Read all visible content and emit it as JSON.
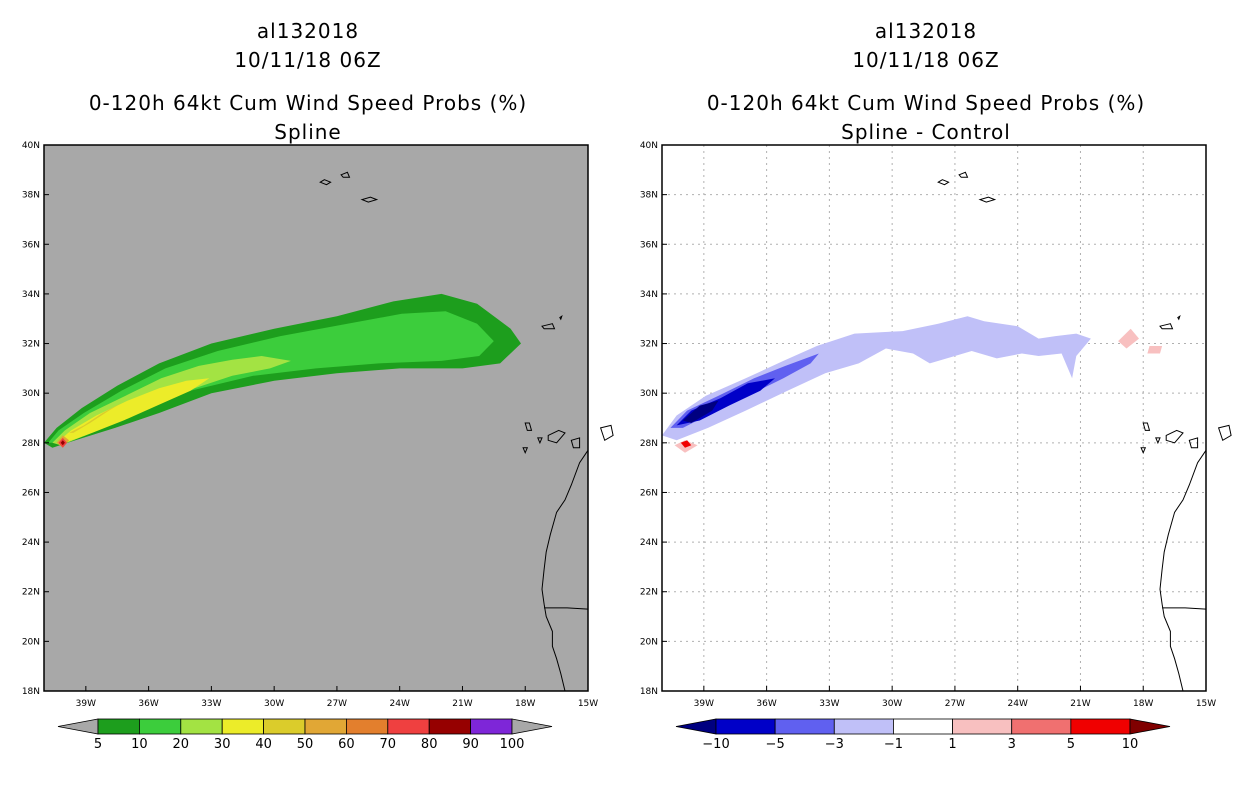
{
  "chart_data": [
    {
      "type": "heatmap",
      "storm_id": "al132018",
      "datetime": "10/11/18 06Z",
      "title": "0-120h 64kt Cum Wind Speed Probs (%)",
      "subtitle": "Spline",
      "xlim": [
        -41,
        -15
      ],
      "ylim": [
        18,
        40
      ],
      "x_ticks": [
        -39,
        -36,
        -33,
        -30,
        -27,
        -24,
        -21,
        -18,
        -15
      ],
      "y_ticks": [
        18,
        20,
        22,
        24,
        26,
        28,
        30,
        32,
        34,
        36,
        38,
        40
      ],
      "x_tick_labels": [
        "39W",
        "36W",
        "33W",
        "30W",
        "27W",
        "24W",
        "21W",
        "18W",
        "15W"
      ],
      "y_tick_labels": [
        "18N",
        "20N",
        "22N",
        "24N",
        "26N",
        "28N",
        "30N",
        "32N",
        "34N",
        "36N",
        "38N",
        "40N"
      ],
      "grid": false,
      "background": "#a8a8a8",
      "levels": [
        5,
        10,
        20,
        30,
        40,
        50,
        60,
        70,
        80,
        90,
        100
      ],
      "level_labels": [
        "5",
        "10",
        "20",
        "30",
        "40",
        "50",
        "60",
        "70",
        "80",
        "90",
        "100"
      ],
      "colors": [
        "#1d9e1d",
        "#3ccd3c",
        "#a3e343",
        "#ecec29",
        "#dbcc2b",
        "#e1a735",
        "#e37f2d",
        "#ef4040",
        "#960000",
        "#7e26d8"
      ],
      "end_color_low": "#a8a8a8",
      "end_color_high": "#a8a8a8",
      "contours": [
        {
          "level": 5,
          "points": [
            [
              -41,
              28
            ],
            [
              -40.4,
              28.6
            ],
            [
              -39.2,
              29.4
            ],
            [
              -37.5,
              30.3
            ],
            [
              -35.5,
              31.2
            ],
            [
              -33,
              32
            ],
            [
              -30,
              32.6
            ],
            [
              -27,
              33.1
            ],
            [
              -24.3,
              33.7
            ],
            [
              -22,
              34
            ],
            [
              -20.3,
              33.6
            ],
            [
              -18.7,
              32.6
            ],
            [
              -18.2,
              32
            ],
            [
              -19.2,
              31.2
            ],
            [
              -21,
              31
            ],
            [
              -24,
              31
            ],
            [
              -27,
              30.8
            ],
            [
              -30,
              30.5
            ],
            [
              -33,
              30
            ],
            [
              -35.5,
              29.2
            ],
            [
              -37.6,
              28.6
            ],
            [
              -39.5,
              28.1
            ],
            [
              -40.6,
              27.8
            ]
          ]
        },
        {
          "level": 10,
          "points": [
            [
              -40.8,
              28
            ],
            [
              -40.3,
              28.5
            ],
            [
              -39.1,
              29.2
            ],
            [
              -37.3,
              30.1
            ],
            [
              -35.2,
              31
            ],
            [
              -32.7,
              31.7
            ],
            [
              -29.7,
              32.3
            ],
            [
              -26.5,
              32.8
            ],
            [
              -23.9,
              33.2
            ],
            [
              -21.8,
              33.3
            ],
            [
              -20.3,
              32.8
            ],
            [
              -19.5,
              32.1
            ],
            [
              -20.2,
              31.5
            ],
            [
              -22,
              31.3
            ],
            [
              -25,
              31.2
            ],
            [
              -28,
              31
            ],
            [
              -31,
              30.7
            ],
            [
              -34,
              30.1
            ],
            [
              -36.3,
              29.3
            ],
            [
              -38.4,
              28.5
            ],
            [
              -40,
              28
            ]
          ]
        },
        {
          "level": 20,
          "points": [
            [
              -40.6,
              28
            ],
            [
              -40,
              28.5
            ],
            [
              -38.8,
              29.2
            ],
            [
              -37.1,
              29.9
            ],
            [
              -35.4,
              30.6
            ],
            [
              -33.6,
              31.1
            ],
            [
              -32,
              31.35
            ],
            [
              -30.6,
              31.5
            ],
            [
              -29.2,
              31.3
            ],
            [
              -30.2,
              31
            ],
            [
              -32,
              30.7
            ],
            [
              -33.8,
              30.2
            ],
            [
              -35.5,
              29.6
            ],
            [
              -37.3,
              28.9
            ],
            [
              -39,
              28.3
            ],
            [
              -40.2,
              27.9
            ]
          ]
        },
        {
          "level": 30,
          "points": [
            [
              -40.4,
              28
            ],
            [
              -39.7,
              28.5
            ],
            [
              -38.5,
              29.1
            ],
            [
              -37,
              29.7
            ],
            [
              -35.5,
              30.2
            ],
            [
              -34.2,
              30.5
            ],
            [
              -33.1,
              30.6
            ],
            [
              -34,
              30.1
            ],
            [
              -35.6,
              29.5
            ],
            [
              -37.2,
              28.9
            ],
            [
              -38.7,
              28.4
            ],
            [
              -40,
              28
            ]
          ]
        },
        {
          "level": 40,
          "points": [
            [
              -39.8,
              28.4
            ],
            [
              -39.1,
              28.7
            ],
            [
              -38.2,
              29.2
            ],
            [
              -37.3,
              29.6
            ],
            [
              -37.9,
              29.3
            ],
            [
              -38.8,
              28.8
            ],
            [
              -39.6,
              28.4
            ]
          ]
        },
        {
          "level": 50,
          "points": [
            [
              -40.4,
              28
            ],
            [
              -40.1,
              28.3
            ],
            [
              -39.8,
              28.1
            ],
            [
              -40.1,
              27.8
            ]
          ]
        },
        {
          "level": 70,
          "points": [
            [
              -40.3,
              28
            ],
            [
              -40.1,
              28.2
            ],
            [
              -39.9,
              28
            ],
            [
              -40.1,
              27.8
            ]
          ]
        },
        {
          "level": 80,
          "points": [
            [
              -40.2,
              28
            ],
            [
              -40.1,
              28.1
            ],
            [
              -40,
              28
            ],
            [
              -40.1,
              27.9
            ]
          ]
        }
      ]
    },
    {
      "type": "heatmap",
      "storm_id": "al132018",
      "datetime": "10/11/18 06Z",
      "title": "0-120h 64kt Cum Wind Speed Probs (%)",
      "subtitle": "Spline - Control",
      "xlim": [
        -41,
        -15
      ],
      "ylim": [
        18,
        40
      ],
      "x_ticks": [
        -39,
        -36,
        -33,
        -30,
        -27,
        -24,
        -21,
        -18,
        -15
      ],
      "y_ticks": [
        18,
        20,
        22,
        24,
        26,
        28,
        30,
        32,
        34,
        36,
        38,
        40
      ],
      "x_tick_labels": [
        "39W",
        "36W",
        "33W",
        "30W",
        "27W",
        "24W",
        "21W",
        "18W",
        "15W"
      ],
      "y_tick_labels": [
        "18N",
        "20N",
        "22N",
        "24N",
        "26N",
        "28N",
        "30N",
        "32N",
        "34N",
        "36N",
        "38N",
        "40N"
      ],
      "grid": true,
      "background": "#ffffff",
      "levels": [
        -10,
        -5,
        -3,
        -1,
        1,
        3,
        5,
        10
      ],
      "level_labels": [
        "-10",
        "-5",
        "-3",
        "-1",
        "1",
        "3",
        "5",
        "10"
      ],
      "colors": [
        "#0000c8",
        "#6060f0",
        "#c0c0f8",
        "#ffffff",
        "#f8c0c0",
        "#f07070",
        "#f00000"
      ],
      "end_color_low": "#000080",
      "end_color_high": "#800000",
      "contours": [
        {
          "level": -1,
          "points": [
            [
              -41,
              28.3
            ],
            [
              -40.3,
              29.1
            ],
            [
              -38.9,
              29.9
            ],
            [
              -37,
              30.6
            ],
            [
              -35.2,
              31.3
            ],
            [
              -33.6,
              31.9
            ],
            [
              -31.8,
              32.4
            ],
            [
              -29.5,
              32.5
            ],
            [
              -27.8,
              32.8
            ],
            [
              -26.4,
              33.1
            ],
            [
              -25.6,
              32.9
            ],
            [
              -24,
              32.7
            ],
            [
              -23,
              32.2
            ],
            [
              -22.2,
              32.3
            ],
            [
              -21.2,
              32.4
            ],
            [
              -20.5,
              32.2
            ],
            [
              -20.9,
              31.8
            ],
            [
              -21.2,
              31.5
            ],
            [
              -21.4,
              30.6
            ],
            [
              -21.9,
              31.6
            ],
            [
              -23,
              31.5
            ],
            [
              -23.8,
              31.6
            ],
            [
              -25,
              31.4
            ],
            [
              -26.2,
              31.7
            ],
            [
              -27,
              31.5
            ],
            [
              -28.2,
              31.2
            ],
            [
              -29,
              31.6
            ],
            [
              -30.3,
              31.8
            ],
            [
              -31.6,
              31.2
            ],
            [
              -33.2,
              30.8
            ],
            [
              -35,
              30.1
            ],
            [
              -37,
              29.3
            ],
            [
              -38.8,
              28.6
            ],
            [
              -40.3,
              28.1
            ]
          ]
        },
        {
          "level": -3,
          "points": [
            [
              -40.6,
              28.6
            ],
            [
              -39.8,
              29.3
            ],
            [
              -38.3,
              29.9
            ],
            [
              -36.6,
              30.6
            ],
            [
              -35.1,
              31.1
            ],
            [
              -33.5,
              31.6
            ],
            [
              -33.9,
              31.2
            ],
            [
              -35.2,
              30.6
            ],
            [
              -36.9,
              29.9
            ],
            [
              -38.6,
              29.2
            ],
            [
              -40,
              28.6
            ]
          ]
        },
        {
          "level": -5,
          "points": [
            [
              -40.3,
              28.7
            ],
            [
              -39.6,
              29.3
            ],
            [
              -38.2,
              29.8
            ],
            [
              -36.9,
              30.4
            ],
            [
              -35.6,
              30.6
            ],
            [
              -36.3,
              30.1
            ],
            [
              -37.8,
              29.5
            ],
            [
              -39.2,
              28.9
            ]
          ]
        },
        {
          "level": -10,
          "points": [
            [
              -40,
              28.9
            ],
            [
              -39.2,
              29.5
            ],
            [
              -38.3,
              29.7
            ],
            [
              -38.6,
              29.3
            ],
            [
              -39.6,
              28.8
            ]
          ]
        },
        {
          "level": 1,
          "points": [
            [
              -40.4,
              27.9
            ],
            [
              -39.9,
              28.1
            ],
            [
              -39.3,
              27.9
            ],
            [
              -39.9,
              27.6
            ]
          ]
        },
        {
          "level": 5,
          "points": [
            [
              -40.1,
              28
            ],
            [
              -39.8,
              28.1
            ],
            [
              -39.6,
              27.9
            ],
            [
              -39.9,
              27.8
            ]
          ]
        },
        {
          "level": 1,
          "points": [
            [
              -19.2,
              32.1
            ],
            [
              -18.6,
              32.6
            ],
            [
              -18.2,
              32.2
            ],
            [
              -18.8,
              31.8
            ]
          ]
        },
        {
          "level": 1,
          "points": [
            [
              -17.7,
              31.9
            ],
            [
              -17.1,
              31.9
            ],
            [
              -17.2,
              31.6
            ],
            [
              -17.8,
              31.6
            ]
          ]
        }
      ]
    }
  ]
}
